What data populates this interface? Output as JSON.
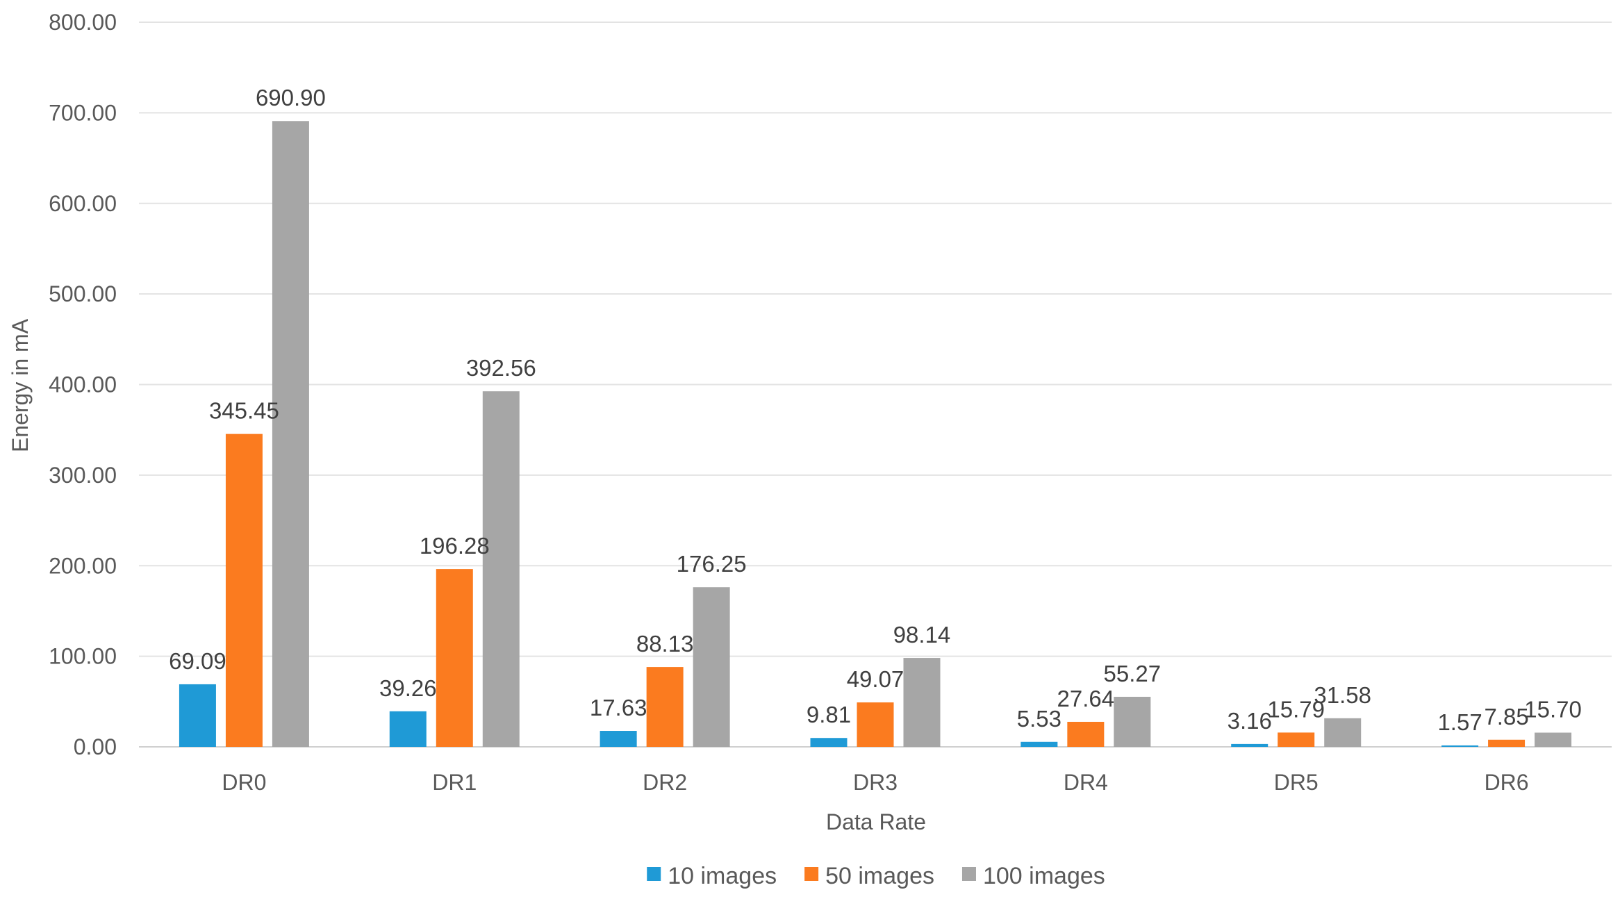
{
  "chart_data": {
    "type": "bar",
    "categories": [
      "DR0",
      "DR1",
      "DR2",
      "DR3",
      "DR4",
      "DR5",
      "DR6"
    ],
    "series": [
      {
        "name": "10 images",
        "color": "#1f9ad6",
        "values": [
          69.09,
          39.26,
          17.63,
          9.81,
          5.53,
          3.16,
          1.57
        ],
        "labels": [
          "69.09",
          "39.26",
          "17.63",
          "9.81",
          "5.53",
          "3.16",
          "1.57"
        ]
      },
      {
        "name": "50 images",
        "color": "#fb7b1f",
        "values": [
          345.45,
          196.28,
          88.13,
          49.07,
          27.64,
          15.79,
          7.85
        ],
        "labels": [
          "345.45",
          "196.28",
          "88.13",
          "49.07",
          "27.64",
          "15.79",
          "7.85"
        ]
      },
      {
        "name": "100 images",
        "color": "#a6a6a6",
        "values": [
          690.9,
          392.56,
          176.25,
          98.14,
          55.27,
          31.58,
          15.7
        ],
        "labels": [
          "690.90",
          "392.56",
          "176.25",
          "98.14",
          "55.27",
          "31.58",
          "15.70"
        ]
      }
    ],
    "xlabel": "Data Rate",
    "ylabel": "Energy in mA",
    "ylim": [
      0,
      800
    ],
    "yticks": [
      "0.00",
      "100.00",
      "200.00",
      "300.00",
      "400.00",
      "500.00",
      "600.00",
      "700.00",
      "800.00"
    ],
    "grid": true,
    "legend": "bottom"
  }
}
